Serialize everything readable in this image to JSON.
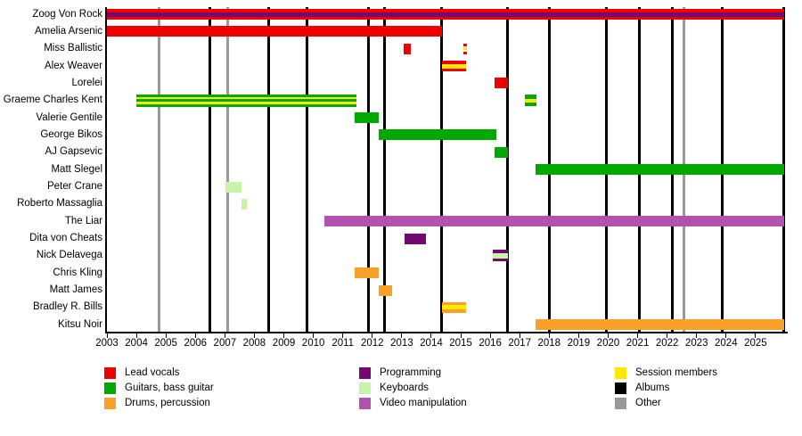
{
  "chart_data": {
    "type": "bar",
    "subtype": "band-membership-timeline-gantt",
    "title": "",
    "x_axis": {
      "min": 2003,
      "max": 2026,
      "tick_years": [
        "2003",
        "2004",
        "2005",
        "2006",
        "2007",
        "2008",
        "2009",
        "2010",
        "2011",
        "2012",
        "2013",
        "2014",
        "2015",
        "2016",
        "2017",
        "2018",
        "2019",
        "2020",
        "2021",
        "2022",
        "2023",
        "2024",
        "2025"
      ]
    },
    "palette": {
      "lead_vocals": "#ee0000",
      "guitars": "#00a800",
      "drums": "#f9a02b",
      "programming": "#730873",
      "keyboards": "#c8f4a8",
      "video": "#b351ae",
      "session": "#ffe800",
      "albums": "#000000",
      "other": "#999999"
    },
    "members": [
      {
        "name": "Zoog Von Rock",
        "bars": [
          {
            "start": 2003.0,
            "end": 2025.97,
            "height": 12,
            "segments": [
              {
                "role": "lead_vocals",
                "w": 3.5
              },
              {
                "role": "programming",
                "w": 5
              },
              {
                "role": "lead_vocals",
                "w": 3.5
              }
            ]
          }
        ]
      },
      {
        "name": "Amelia Arsenic",
        "bars": [
          {
            "start": 2003.0,
            "end": 2014.35,
            "height": 12,
            "segments": [
              {
                "role": "lead_vocals",
                "w": 12
              }
            ]
          }
        ]
      },
      {
        "name": "Miss Ballistic",
        "bars": [
          {
            "start": 2013.05,
            "end": 2013.32,
            "height": 12,
            "segments": [
              {
                "role": "lead_vocals",
                "w": 12
              }
            ]
          },
          {
            "start": 2015.08,
            "end": 2015.21,
            "height": 12,
            "dashed": true,
            "segments": [
              {
                "role": "lead_vocals",
                "w": 3
              },
              {
                "role": "session",
                "w": 3
              },
              {
                "role": "lead_vocals",
                "w": 3
              }
            ]
          }
        ]
      },
      {
        "name": "Alex Weaver",
        "bars": [
          {
            "start": 2014.35,
            "end": 2015.17,
            "height": 12,
            "segments": [
              {
                "role": "lead_vocals",
                "w": 3.5
              },
              {
                "role": "session",
                "w": 5
              },
              {
                "role": "lead_vocals",
                "w": 3.5
              }
            ]
          }
        ]
      },
      {
        "name": "Lorelei",
        "bars": [
          {
            "start": 2016.15,
            "end": 2016.6,
            "height": 12,
            "segments": [
              {
                "role": "lead_vocals",
                "w": 12
              }
            ]
          }
        ]
      },
      {
        "name": "Graeme Charles Kent",
        "bars": [
          {
            "start": 2004.0,
            "end": 2011.46,
            "height": 14,
            "segments": [
              {
                "role": "guitars",
                "w": 3
              },
              {
                "role": "session",
                "w": 2.5
              },
              {
                "role": "guitars",
                "w": 3
              },
              {
                "role": "session",
                "w": 2.5
              },
              {
                "role": "guitars",
                "w": 3
              }
            ]
          },
          {
            "start": 2017.16,
            "end": 2017.56,
            "height": 13,
            "segments": [
              {
                "role": "guitars",
                "w": 4
              },
              {
                "role": "session",
                "w": 4
              },
              {
                "role": "guitars",
                "w": 4
              }
            ]
          }
        ]
      },
      {
        "name": "Valerie Gentile",
        "bars": [
          {
            "start": 2011.4,
            "end": 2012.22,
            "height": 12,
            "segments": [
              {
                "role": "guitars",
                "w": 12
              }
            ]
          }
        ]
      },
      {
        "name": "George Bikos",
        "bars": [
          {
            "start": 2012.22,
            "end": 2016.2,
            "height": 12,
            "segments": [
              {
                "role": "guitars",
                "w": 12
              }
            ]
          }
        ]
      },
      {
        "name": "AJ Gapsevic",
        "bars": [
          {
            "start": 2016.15,
            "end": 2016.6,
            "height": 12,
            "segments": [
              {
                "role": "guitars",
                "w": 12
              }
            ]
          }
        ]
      },
      {
        "name": "Matt Slegel",
        "bars": [
          {
            "start": 2017.53,
            "end": 2025.97,
            "height": 12,
            "segments": [
              {
                "role": "guitars",
                "w": 12
              }
            ]
          }
        ]
      },
      {
        "name": "Peter Crane",
        "bars": [
          {
            "start": 2007.02,
            "end": 2007.56,
            "height": 12,
            "segments": [
              {
                "role": "keyboards",
                "w": 12
              }
            ]
          }
        ]
      },
      {
        "name": "Roberto Massaglia",
        "bars": [
          {
            "start": 2007.55,
            "end": 2007.76,
            "height": 12,
            "segments": [
              {
                "role": "keyboards",
                "w": 12
              }
            ]
          }
        ]
      },
      {
        "name": "The Liar",
        "bars": [
          {
            "start": 2010.37,
            "end": 2025.97,
            "height": 12,
            "segments": [
              {
                "role": "video",
                "w": 12
              }
            ]
          }
        ]
      },
      {
        "name": "Dita von Cheats",
        "bars": [
          {
            "start": 2013.1,
            "end": 2013.82,
            "height": 12,
            "segments": [
              {
                "role": "programming",
                "w": 12
              }
            ]
          }
        ]
      },
      {
        "name": "Nick Delavega",
        "bars": [
          {
            "start": 2016.08,
            "end": 2016.6,
            "height": 13,
            "segments": [
              {
                "role": "programming",
                "w": 3.5
              },
              {
                "role": "keyboards",
                "w": 5
              },
              {
                "role": "programming",
                "w": 3.5
              }
            ]
          }
        ]
      },
      {
        "name": "Chris Kling",
        "bars": [
          {
            "start": 2011.4,
            "end": 2012.22,
            "height": 12,
            "segments": [
              {
                "role": "drums",
                "w": 12
              }
            ]
          }
        ]
      },
      {
        "name": "Matt James",
        "bars": [
          {
            "start": 2012.22,
            "end": 2012.68,
            "height": 12,
            "segments": [
              {
                "role": "drums",
                "w": 12
              }
            ]
          }
        ]
      },
      {
        "name": "Bradley R. Bills",
        "bars": [
          {
            "start": 2014.35,
            "end": 2015.17,
            "height": 12,
            "segments": [
              {
                "role": "drums",
                "w": 3.5
              },
              {
                "role": "session",
                "w": 5
              },
              {
                "role": "drums",
                "w": 3.5
              }
            ]
          }
        ]
      },
      {
        "name": "Kitsu Noir",
        "bars": [
          {
            "start": 2017.53,
            "end": 2025.97,
            "height": 12,
            "segments": [
              {
                "role": "drums",
                "w": 12
              }
            ]
          }
        ]
      }
    ],
    "album_years": [
      2006.48,
      2008.49,
      2009.8,
      2011.86,
      2012.42,
      2014.35,
      2016.6,
      2018.0,
      2019.95,
      2021.06,
      2022.19,
      2023.87,
      2025.94
    ],
    "other_years": [
      2004.76,
      2007.11,
      2022.57
    ],
    "legend": {
      "columns": [
        {
          "items": [
            {
              "label": "Lead vocals",
              "role": "lead_vocals"
            },
            {
              "label": "Guitars, bass guitar",
              "role": "guitars"
            },
            {
              "label": "Drums, percussion",
              "role": "drums"
            }
          ]
        },
        {
          "items": [
            {
              "label": "Programming",
              "role": "programming"
            },
            {
              "label": "Keyboards",
              "role": "keyboards"
            },
            {
              "label": "Video manipulation",
              "role": "video"
            }
          ]
        },
        {
          "items": [
            {
              "label": "Session members",
              "role": "session"
            },
            {
              "label": "Albums",
              "role": "albums"
            },
            {
              "label": "Other",
              "role": "other"
            }
          ]
        }
      ]
    }
  }
}
